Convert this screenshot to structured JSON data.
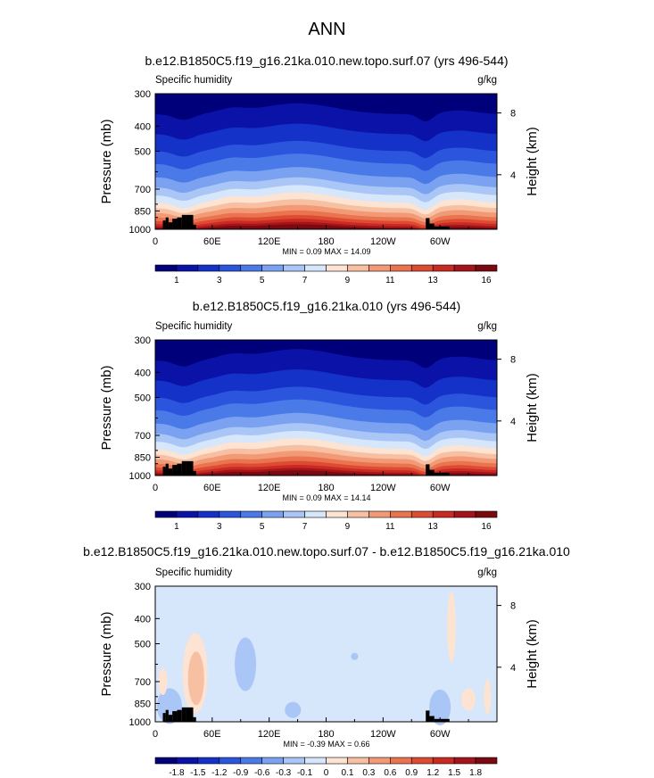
{
  "title": "ANN",
  "colors": {
    "topo": "#000000",
    "scale_q": [
      "#00007a",
      "#0a12a8",
      "#1532c8",
      "#2a55dc",
      "#4a7ae8",
      "#7aa2f0",
      "#a9c6f6",
      "#d6e6fb",
      "#fde3d2",
      "#f8c0a2",
      "#f29a76",
      "#ea7350",
      "#de4b33",
      "#c92a21",
      "#a4141a",
      "#7a0a12"
    ],
    "scale_d": [
      "#00007a",
      "#0a12a8",
      "#1532c8",
      "#2a55dc",
      "#4a7ae8",
      "#7aa2f0",
      "#a9c6f6",
      "#d6e6fb",
      "#fde3d2",
      "#f8c0a2",
      "#f29a76",
      "#ea7350",
      "#de4b33",
      "#c92a21",
      "#a4141a",
      "#7a0a12"
    ],
    "diff_bg": "#d6e6fb",
    "diff_neg": "#a9c6f6",
    "diff_neg2": "#7aa2f0",
    "diff_pos": "#fde3d2",
    "diff_pos2": "#f8c0a2"
  },
  "chart_data": [
    {
      "type": "heatmap",
      "title": "b.e12.B1850C5.f19_g16.21ka.010.new.topo.surf.07 (yrs 496-544)",
      "field_label": "Specific humidity",
      "units": "g/kg",
      "ylabel": "Pressure (mb)",
      "ylabel_right": "Height (km)",
      "x_ticks": [
        "0",
        "60E",
        "120E",
        "180",
        "120W",
        "60W"
      ],
      "y_ticks": [
        "300",
        "400",
        "500",
        "700",
        "850",
        "1000"
      ],
      "y_right_ticks": [
        "8",
        "4"
      ],
      "min_max_text": "MIN =   0.09  MAX =   14.09",
      "min": 0.09,
      "max": 14.09,
      "colorbar_labels": [
        "1",
        "3",
        "5",
        "7",
        "9",
        "11",
        "13",
        "16"
      ]
    },
    {
      "type": "heatmap",
      "title": "b.e12.B1850C5.f19_g16.21ka.010 (yrs 496-544)",
      "field_label": "Specific humidity",
      "units": "g/kg",
      "ylabel": "Pressure (mb)",
      "ylabel_right": "Height (km)",
      "x_ticks": [
        "0",
        "60E",
        "120E",
        "180",
        "120W",
        "60W"
      ],
      "y_ticks": [
        "300",
        "400",
        "500",
        "700",
        "850",
        "1000"
      ],
      "y_right_ticks": [
        "8",
        "4"
      ],
      "min_max_text": "MIN =   0.09  MAX =   14.14",
      "min": 0.09,
      "max": 14.14,
      "colorbar_labels": [
        "1",
        "3",
        "5",
        "7",
        "9",
        "11",
        "13",
        "16"
      ]
    },
    {
      "type": "heatmap",
      "title": "b.e12.B1850C5.f19_g16.21ka.010.new.topo.surf.07 - b.e12.B1850C5.f19_g16.21ka.010",
      "field_label": "Specific humidity",
      "units": "g/kg",
      "ylabel": "Pressure (mb)",
      "ylabel_right": "Height (km)",
      "x_ticks": [
        "0",
        "60E",
        "120E",
        "180",
        "120W",
        "60W"
      ],
      "y_ticks": [
        "300",
        "400",
        "500",
        "700",
        "850",
        "1000"
      ],
      "y_right_ticks": [
        "8",
        "4"
      ],
      "min_max_text": "MIN =  -0.39  MAX =   0.66",
      "min": -0.39,
      "max": 0.66,
      "colorbar_labels": [
        "-1.8",
        "-1.5",
        "-1.2",
        "-0.9",
        "-0.6",
        "-0.3",
        "-0.1",
        "0",
        "0.1",
        "0.3",
        "0.6",
        "0.9",
        "1.2",
        "1.5",
        "1.8"
      ]
    }
  ]
}
